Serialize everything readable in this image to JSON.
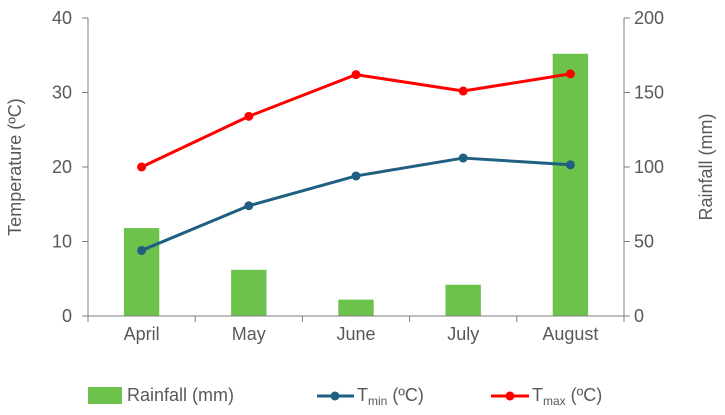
{
  "chart_data": {
    "type": "bar+line",
    "title": "",
    "categories": [
      "April",
      "May",
      "June",
      "July",
      "August"
    ],
    "y_left": {
      "label": "Temperature (ºC)",
      "lim": [
        0,
        40
      ],
      "ticks": [
        "0",
        "10",
        "20",
        "30",
        "40"
      ],
      "tick_values": [
        0,
        10,
        20,
        30,
        40
      ]
    },
    "y_right": {
      "label": "Rainfall (mm)",
      "lim": [
        0,
        200
      ],
      "ticks": [
        "0",
        "50",
        "100",
        "150",
        "200"
      ],
      "tick_values": [
        0,
        50,
        100,
        150,
        200
      ]
    },
    "series": [
      {
        "name": "Rainfall (mm)",
        "kind": "bar",
        "axis": "right",
        "color": "#6cc24a",
        "values": [
          59,
          31,
          11,
          21,
          176
        ]
      },
      {
        "name": "Tmin (ºC)",
        "label_main": "T",
        "label_sub": "min",
        "label_unit": " (ºC)",
        "kind": "line",
        "axis": "left",
        "color": "#1f5f82",
        "values": [
          8.8,
          14.8,
          18.8,
          21.2,
          20.3
        ]
      },
      {
        "name": "Tmax (ºC)",
        "label_main": "T",
        "label_sub": "max",
        "label_unit": " (ºC)",
        "kind": "line",
        "axis": "left",
        "color": "#ff0000",
        "values": [
          20.0,
          26.8,
          32.4,
          30.2,
          32.5
        ]
      }
    ],
    "legend_position": "bottom",
    "grid": false
  }
}
